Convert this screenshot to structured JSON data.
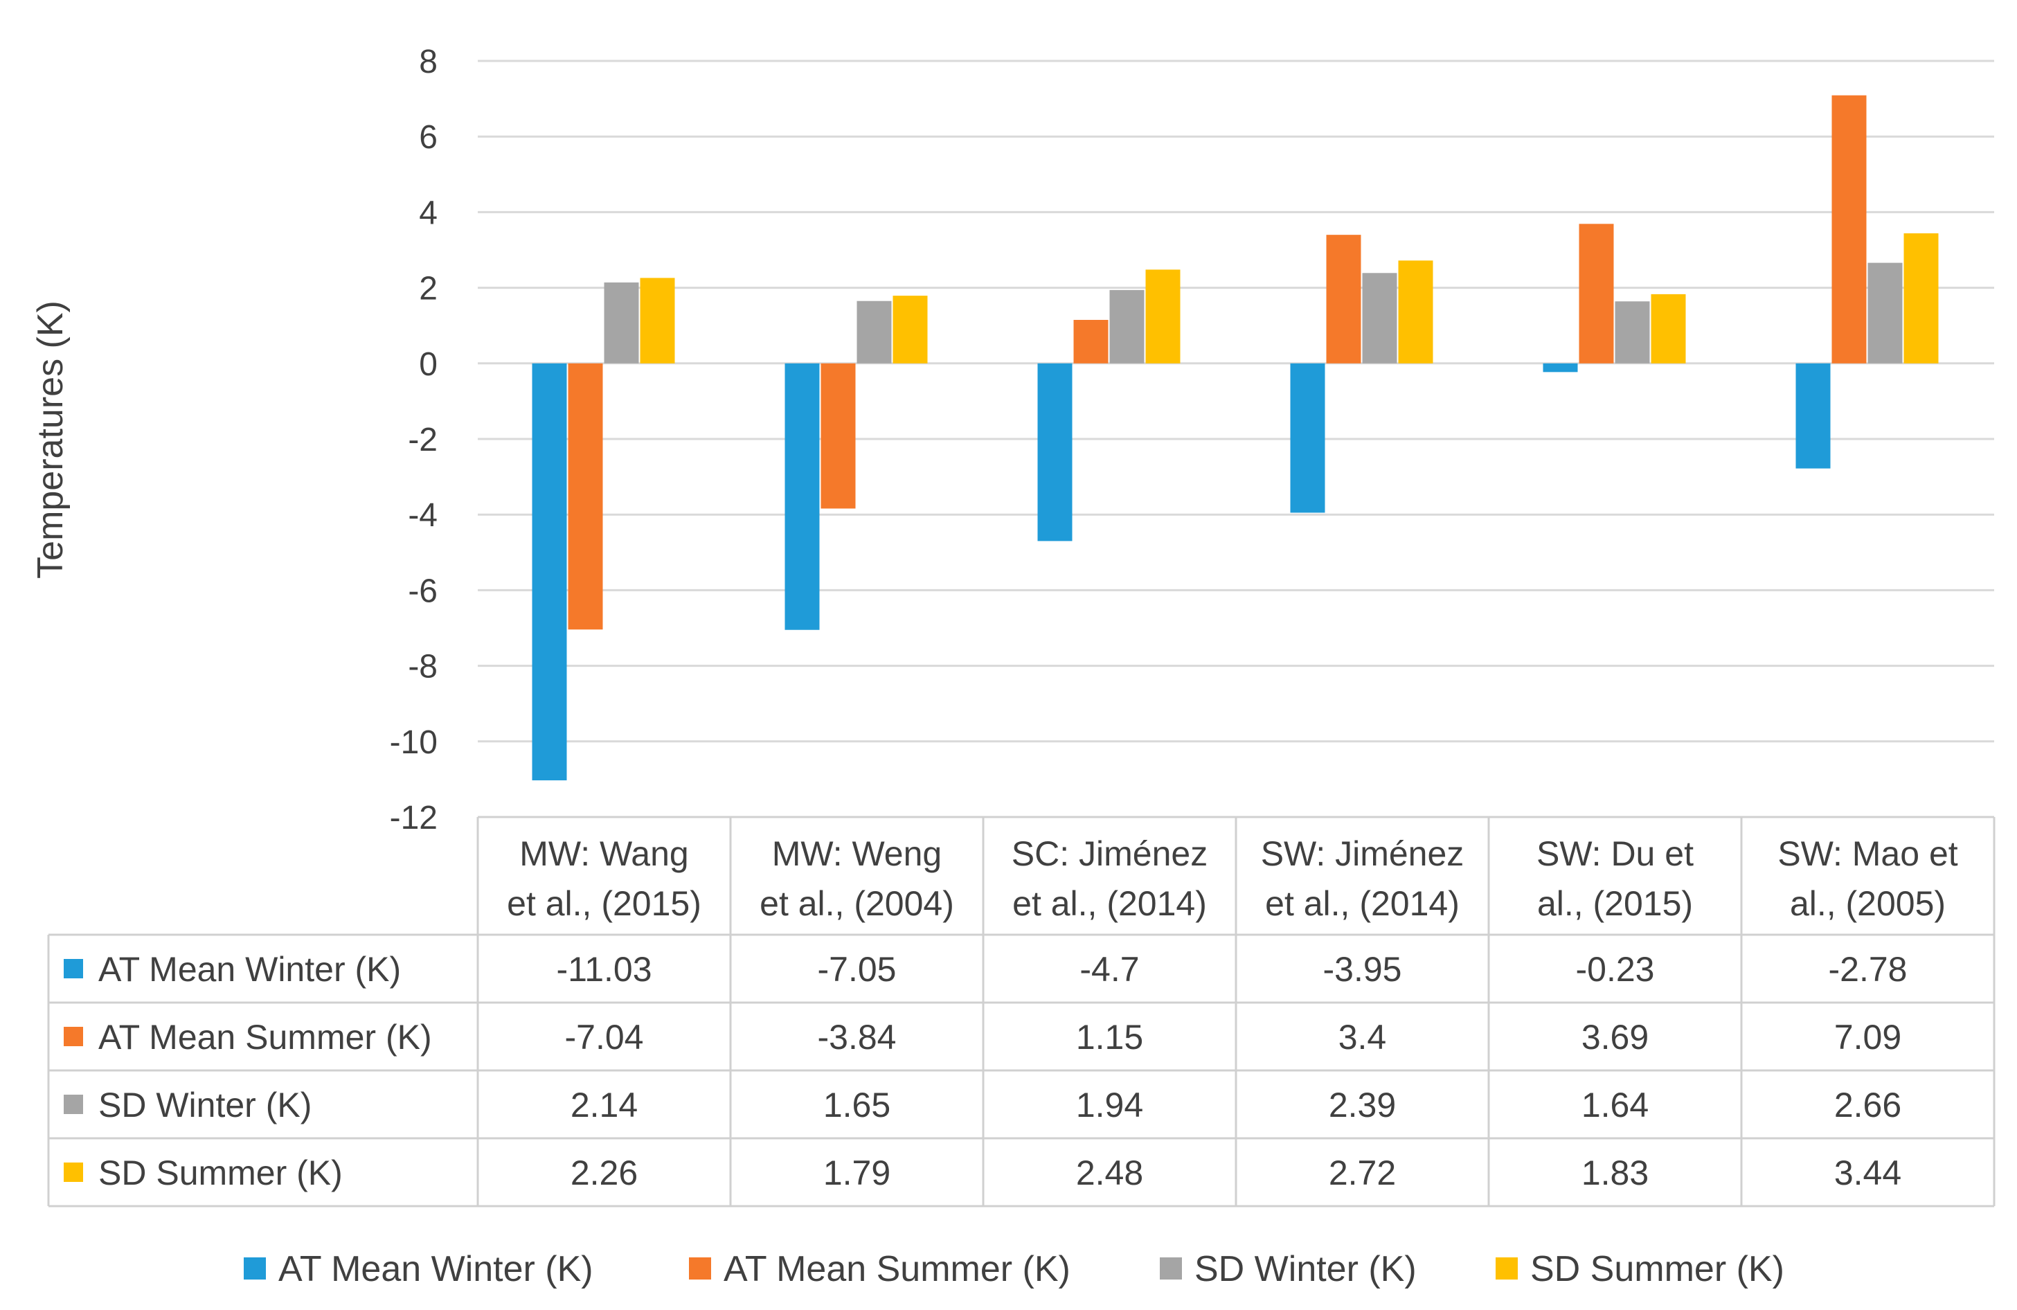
{
  "chart_data": {
    "type": "bar",
    "title": "",
    "xlabel": "",
    "ylabel": "Temperatures (K)",
    "ylim": [
      -12,
      8
    ],
    "yticks": [
      8,
      6,
      4,
      2,
      0,
      -2,
      -4,
      -6,
      -8,
      -10,
      -12
    ],
    "grid": true,
    "legend_position": "bottom",
    "categories": [
      [
        "MW: Wang",
        "et al., (2015)"
      ],
      [
        "MW: Weng",
        "et al., (2004)"
      ],
      [
        "SC: Jiménez",
        "et al., (2014)"
      ],
      [
        "SW: Jiménez",
        "et al., (2014)"
      ],
      [
        "SW: Du et",
        "al., (2015)"
      ],
      [
        "SW: Mao et",
        "al., (2005)"
      ]
    ],
    "series": [
      {
        "name": "AT Mean Winter (K)",
        "color": "#1f9bd8",
        "values": [
          -11.03,
          -7.05,
          -4.7,
          -3.95,
          -0.23,
          -2.78
        ],
        "labels": [
          "-11.03",
          "-7.05",
          "-4.7",
          "-3.95",
          "-0.23",
          "-2.78"
        ]
      },
      {
        "name": "AT Mean Summer (K)",
        "color": "#f5792a",
        "values": [
          -7.04,
          -3.84,
          1.15,
          3.4,
          3.69,
          7.09
        ],
        "labels": [
          "-7.04",
          "-3.84",
          "1.15",
          "3.4",
          "3.69",
          "7.09"
        ]
      },
      {
        "name": "SD Winter (K)",
        "color": "#a5a5a5",
        "values": [
          2.14,
          1.65,
          1.94,
          2.39,
          1.64,
          2.66
        ],
        "labels": [
          "2.14",
          "1.65",
          "1.94",
          "2.39",
          "1.64",
          "2.66"
        ]
      },
      {
        "name": "SD Summer (K)",
        "color": "#ffc000",
        "values": [
          2.26,
          1.79,
          2.48,
          2.72,
          1.83,
          3.44
        ],
        "labels": [
          "2.26",
          "1.79",
          "2.48",
          "2.72",
          "1.83",
          "3.44"
        ]
      }
    ]
  }
}
